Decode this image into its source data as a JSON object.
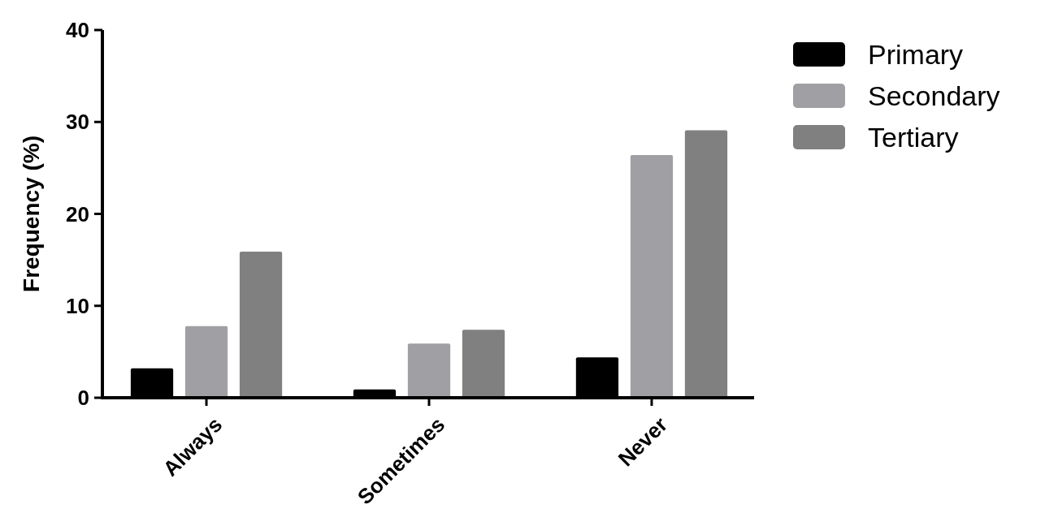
{
  "chart_data": {
    "type": "bar",
    "ylabel": "Frequency (%)",
    "categories": [
      "Always",
      "Sometimes",
      "Never"
    ],
    "series": [
      {
        "name": "Primary",
        "color": "#000000",
        "values": [
          3.2,
          0.9,
          4.4
        ]
      },
      {
        "name": "Secondary",
        "color": "#a0a0a4",
        "values": [
          7.8,
          5.9,
          26.4
        ]
      },
      {
        "name": "Tertiary",
        "color": "#808080",
        "values": [
          15.9,
          7.4,
          29.1
        ]
      }
    ],
    "ylim": [
      0,
      40
    ],
    "yticks": [
      0,
      10,
      20,
      30,
      40
    ],
    "grid": false,
    "legend": "top right"
  }
}
